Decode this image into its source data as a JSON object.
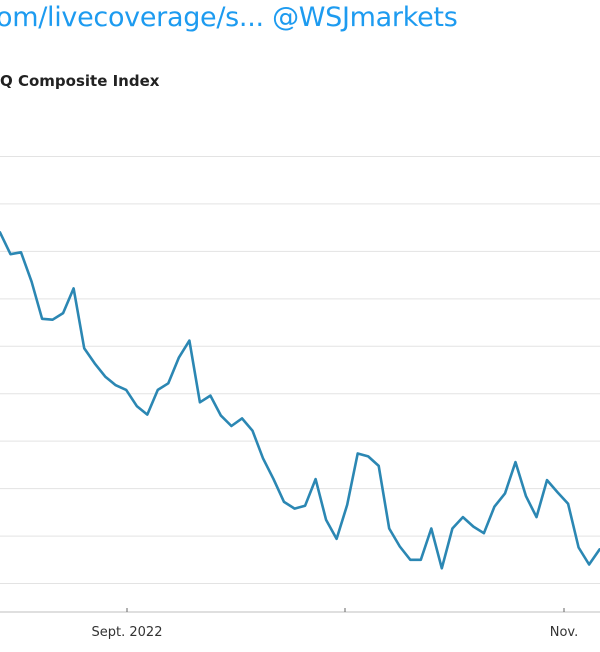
{
  "tweet": {
    "link_text": "om/livecoverage/s...",
    "handle": "@WSJmarkets",
    "link_color": "#1d9bf0"
  },
  "chart_data": {
    "type": "line",
    "title": "Q Composite Index",
    "xlabel": "",
    "ylabel": "",
    "x_tick_labels": [
      "Sept. 2022",
      "Nov."
    ],
    "grid": true,
    "line_color": "#2b87b3",
    "series": [
      {
        "values": [
          12700,
          12470,
          12490,
          12180,
          11790,
          11780,
          11850,
          12110,
          11480,
          11320,
          11180,
          11090,
          11040,
          10870,
          10780,
          11040,
          11110,
          11380,
          11560,
          10910,
          10980,
          10770,
          10660,
          10740,
          10610,
          10320,
          10100,
          9860,
          9790,
          9820,
          10100,
          9670,
          9470,
          9830,
          10370,
          10340,
          10240,
          9580,
          9390,
          9250,
          9250,
          9580,
          9160,
          9580,
          9700,
          9600,
          9530,
          9810,
          9950,
          10280,
          9920,
          9700,
          10090,
          9960,
          9840,
          9380,
          9200,
          9360
        ]
      }
    ],
    "ylim": [
      8700,
      13800
    ]
  }
}
